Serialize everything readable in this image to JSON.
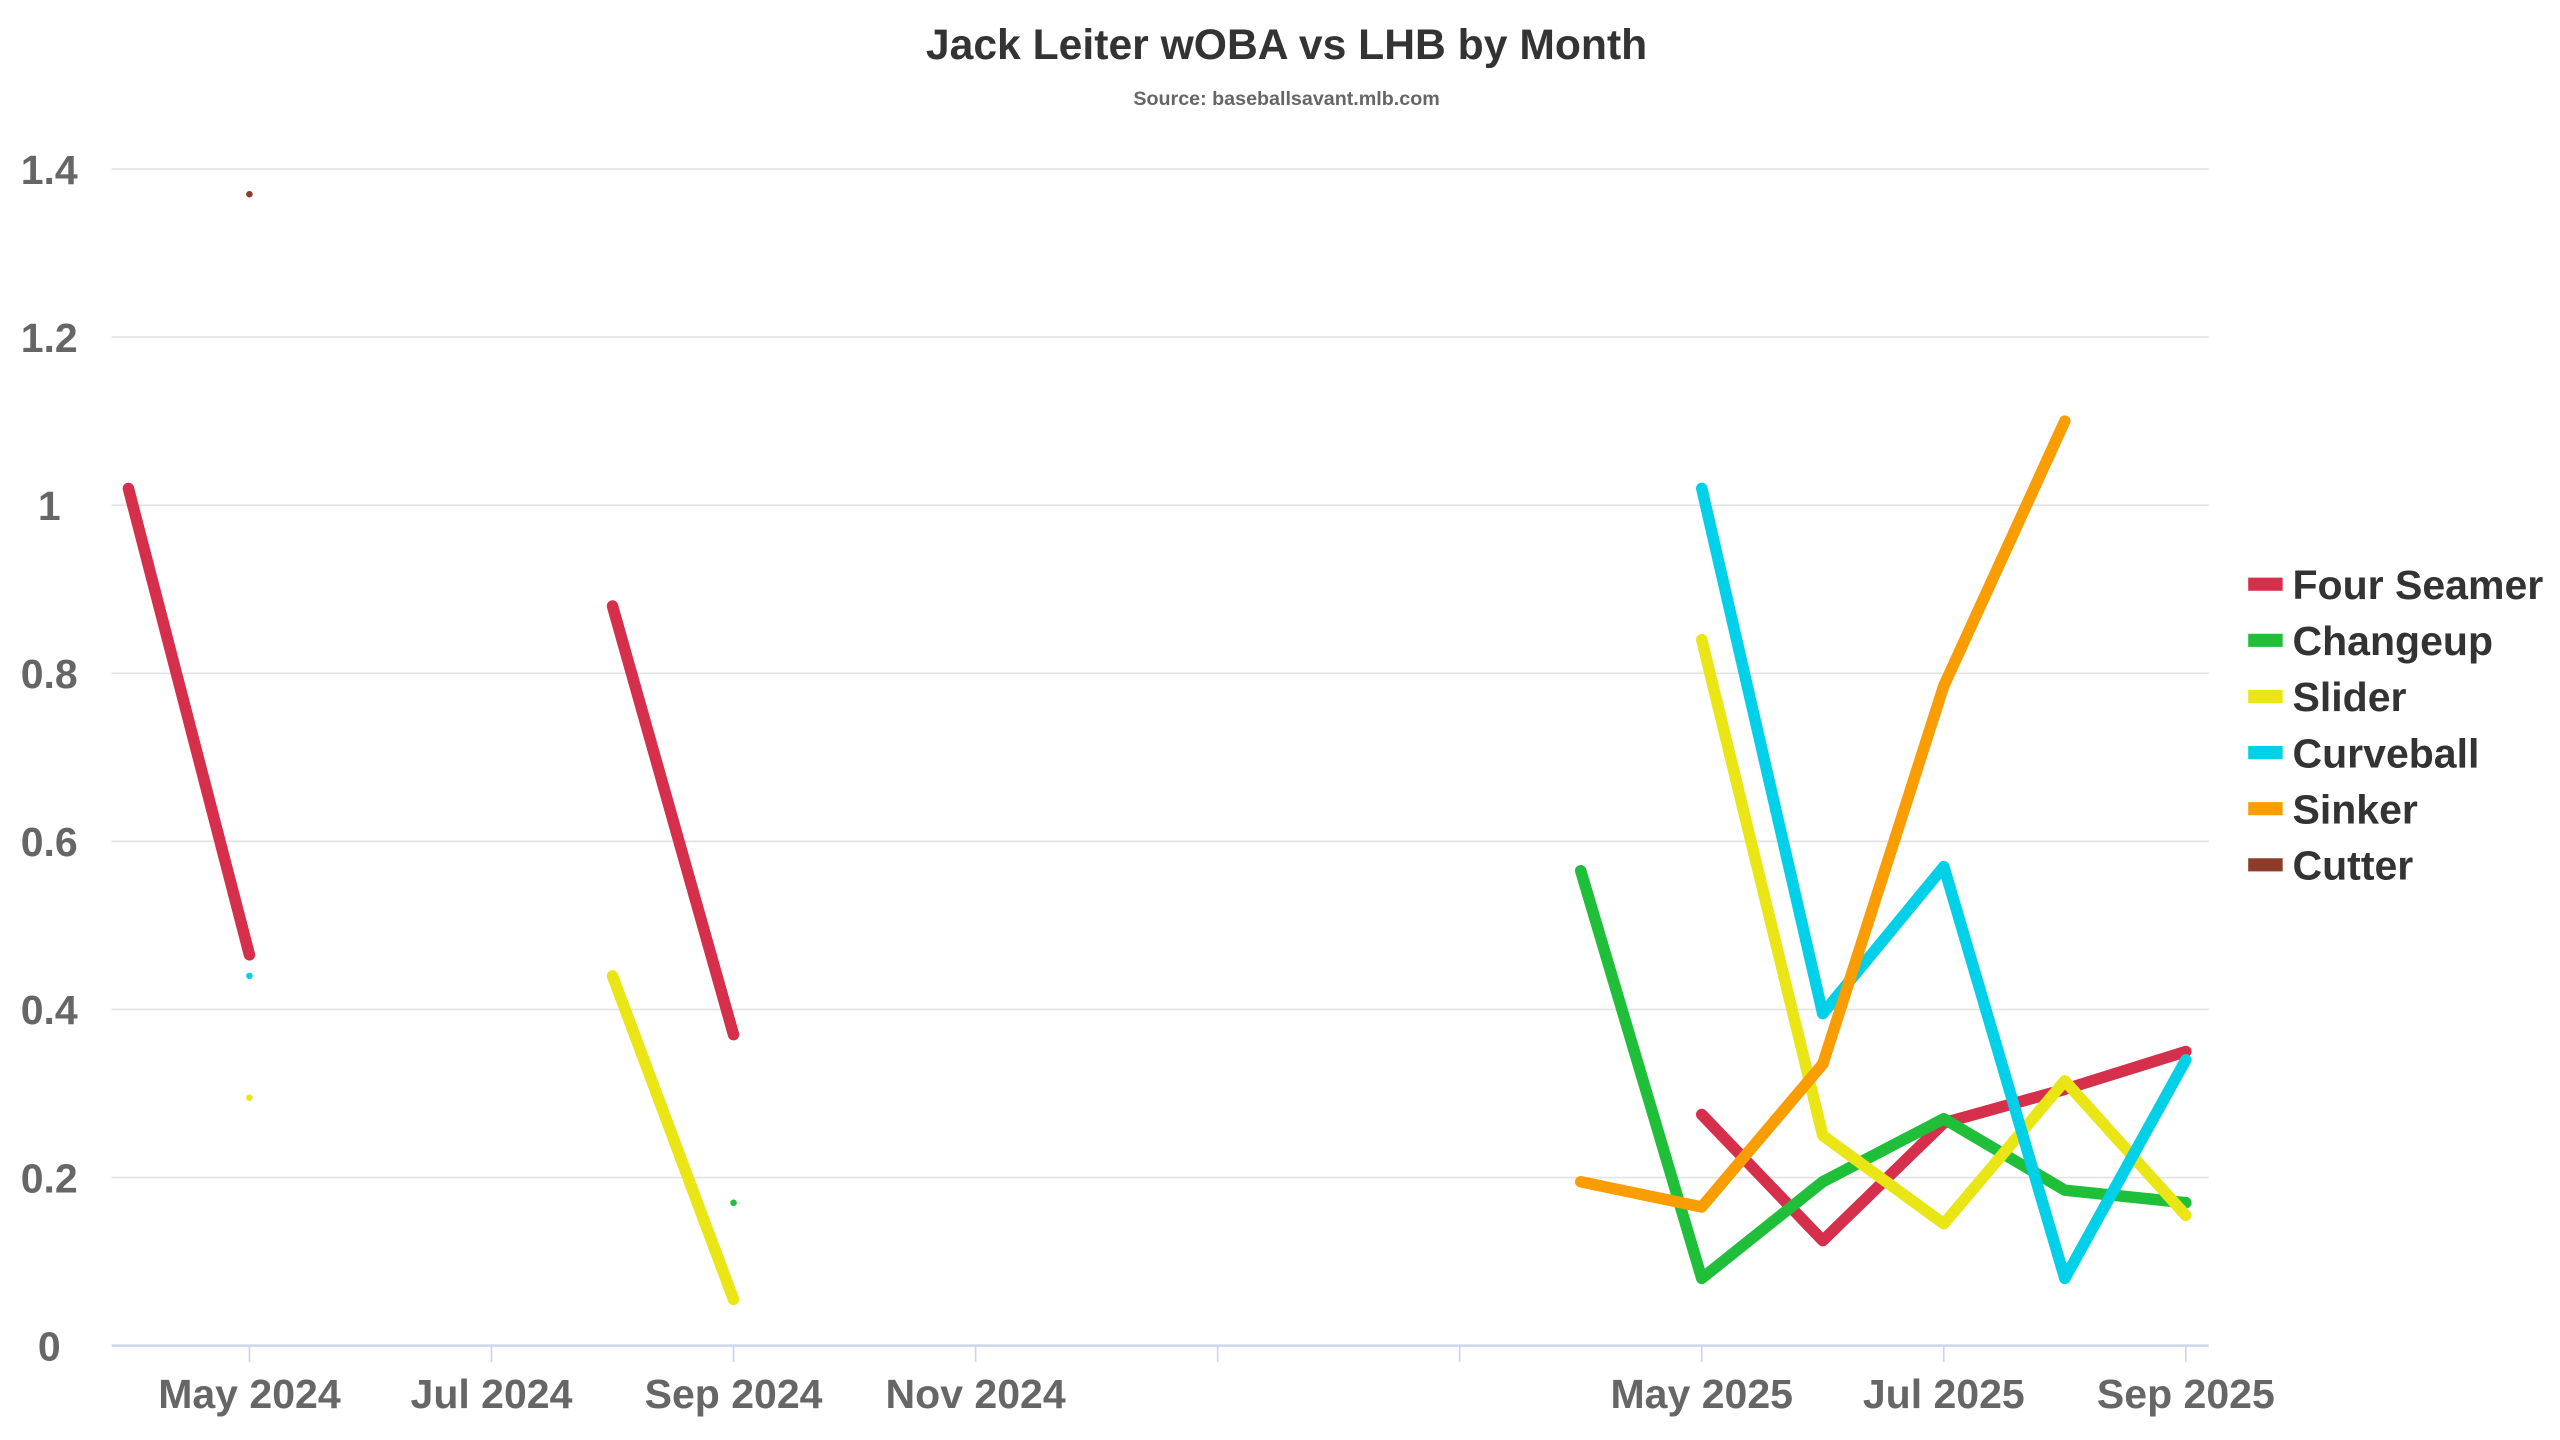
{
  "chart_data": {
    "type": "line",
    "title": "Jack Leiter wOBA vs LHB by Month",
    "subtitle": "Source: baseballsavant.mlb.com",
    "xlabel": "",
    "ylabel": "",
    "ylim": [
      0,
      1.4
    ],
    "yticks": [
      {
        "v": 0,
        "label": "0"
      },
      {
        "v": 0.2,
        "label": "0.2"
      },
      {
        "v": 0.4,
        "label": "0.4"
      },
      {
        "v": 0.6,
        "label": "0.6"
      },
      {
        "v": 0.8,
        "label": "0.8"
      },
      {
        "v": 1,
        "label": "1"
      },
      {
        "v": 1.2,
        "label": "1.2"
      },
      {
        "v": 1.4,
        "label": "1.4"
      }
    ],
    "x": [
      "2024-04",
      "2024-05",
      "2024-06",
      "2024-07",
      "2024-08",
      "2024-09",
      "2024-10",
      "2024-11",
      "2024-12",
      "2025-01",
      "2025-02",
      "2025-03",
      "2025-04",
      "2025-05",
      "2025-06",
      "2025-07",
      "2025-08",
      "2025-09"
    ],
    "xticks": [
      {
        "i": 1,
        "label": "May 2024"
      },
      {
        "i": 3,
        "label": "Jul 2024"
      },
      {
        "i": 5,
        "label": "Sep 2024"
      },
      {
        "i": 7,
        "label": "Nov 2024"
      },
      {
        "i": 9,
        "label": ""
      },
      {
        "i": 11,
        "label": ""
      },
      {
        "i": 13,
        "label": "May 2025"
      },
      {
        "i": 15,
        "label": "Jul 2025"
      },
      {
        "i": 17,
        "label": "Sep 2025"
      }
    ],
    "grid": true,
    "legend_position": "right",
    "series": [
      {
        "name": "Four Seamer",
        "color": "#d62f4b",
        "values": [
          1.02,
          0.465,
          null,
          null,
          0.88,
          0.37,
          null,
          null,
          null,
          null,
          null,
          null,
          null,
          0.275,
          0.125,
          0.265,
          0.305,
          0.35
        ]
      },
      {
        "name": "Changeup",
        "color": "#1fbf3a",
        "values": [
          null,
          null,
          null,
          null,
          null,
          0.17,
          null,
          null,
          null,
          null,
          null,
          null,
          0.565,
          0.08,
          0.195,
          0.27,
          0.185,
          0.17
        ]
      },
      {
        "name": "Slider",
        "color": "#eae514",
        "values": [
          null,
          0.295,
          null,
          null,
          0.44,
          0.055,
          null,
          null,
          null,
          null,
          null,
          null,
          null,
          0.84,
          0.25,
          0.145,
          0.315,
          0.155
        ]
      },
      {
        "name": "Curveball",
        "color": "#00d0e8",
        "values": [
          null,
          0.44,
          null,
          null,
          null,
          null,
          null,
          null,
          null,
          null,
          null,
          null,
          null,
          1.02,
          0.395,
          0.57,
          0.08,
          0.34
        ]
      },
      {
        "name": "Sinker",
        "color": "#f99d00",
        "values": [
          null,
          null,
          null,
          null,
          null,
          null,
          null,
          null,
          null,
          null,
          null,
          null,
          0.195,
          0.165,
          0.335,
          0.785,
          1.1,
          null
        ]
      },
      {
        "name": "Cutter",
        "color": "#8d3b2a",
        "values": [
          null,
          1.37,
          null,
          null,
          null,
          null,
          null,
          null,
          null,
          null,
          null,
          null,
          null,
          null,
          null,
          null,
          null,
          null
        ]
      }
    ]
  }
}
